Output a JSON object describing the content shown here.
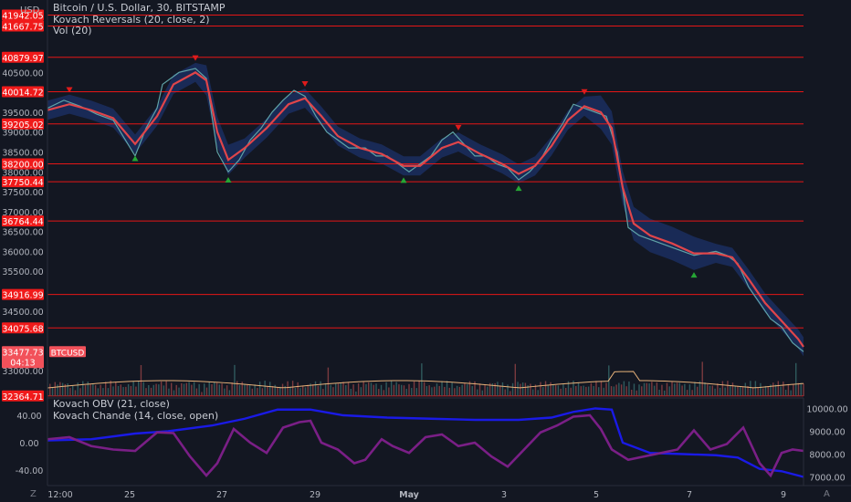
{
  "header": {
    "currency": "USD",
    "title": "Bitcoin / U.S. Dollar, 30, BITSTAMP",
    "indicators": [
      "Kovach Reversals (20, close, 2)",
      "Vol (20)"
    ]
  },
  "lower_pane": {
    "indicators": [
      "Kovach OBV (21, close)",
      "Kovach Chande (14, close, open)"
    ]
  },
  "footer": {
    "left_button": "Z",
    "right_button": "A"
  },
  "colors": {
    "background": "#131722",
    "level_line": "#e51616",
    "level_label": "#f01a1a",
    "price_line": "#5fa3a7",
    "ma_line": "#e0454a",
    "band_fill": "#1f3a82",
    "up_marker": "#26a634",
    "down_marker": "#e01b1b",
    "volume_line": "#e8b27a",
    "obv_line": "#1a1ae6",
    "chande_line": "#7a1f86"
  },
  "chart_data": [
    {
      "type": "line",
      "name": "price",
      "x_labels": [
        "12:00",
        "25",
        "27",
        "29",
        "May",
        "3",
        "5",
        "7",
        "9"
      ],
      "y_ticks": [
        33000,
        33500,
        34000,
        34500,
        35000,
        35500,
        36000,
        36500,
        37000,
        37500,
        38000,
        38500,
        39000,
        39500,
        40000,
        40500,
        41000,
        41500
      ],
      "y_tick_labels": [
        "33000.00",
        "33500.00",
        "34000.00",
        "34500.00",
        "35000.00",
        "35500.00",
        "36000.00",
        "36500.00",
        "37000.00",
        "37500.00",
        "38000.00",
        "38500.00",
        "39000.00",
        "39500.00",
        "40000.00",
        "40500.00",
        "41000.00",
        "41500.00"
      ],
      "ylim": [
        32360,
        42000
      ],
      "levels": [
        {
          "value": 41942.05,
          "label": "41942.05"
        },
        {
          "value": 41667.75,
          "label": "41667.75"
        },
        {
          "value": 40879.97,
          "label": "40879.97"
        },
        {
          "value": 40014.72,
          "label": "40014.72"
        },
        {
          "value": 39205.02,
          "label": "39205.02"
        },
        {
          "value": 38200.0,
          "label": "38200.00"
        },
        {
          "value": 37750.44,
          "label": "37750.44"
        },
        {
          "value": 36764.44,
          "label": "36764.44"
        },
        {
          "value": 34916.99,
          "label": "34916.99"
        },
        {
          "value": 34075.68,
          "label": "34075.68"
        },
        {
          "value": 32364.71,
          "label": "32364.71"
        }
      ],
      "last_price": {
        "value": 33477.73,
        "label": "33477.73",
        "countdown": "04:13",
        "symbol": "BTCUSD"
      },
      "series": [
        {
          "name": "price",
          "points": [
            [
              0.0,
              39600
            ],
            [
              0.03,
              39800
            ],
            [
              0.06,
              39650
            ],
            [
              0.09,
              39450
            ],
            [
              0.12,
              39300
            ],
            [
              0.14,
              38850
            ],
            [
              0.16,
              38400
            ],
            [
              0.18,
              39100
            ],
            [
              0.2,
              39600
            ],
            [
              0.21,
              40200
            ],
            [
              0.24,
              40500
            ],
            [
              0.27,
              40600
            ],
            [
              0.29,
              40350
            ],
            [
              0.31,
              38500
            ],
            [
              0.33,
              38000
            ],
            [
              0.35,
              38300
            ],
            [
              0.37,
              38800
            ],
            [
              0.39,
              39100
            ],
            [
              0.41,
              39500
            ],
            [
              0.43,
              39800
            ],
            [
              0.45,
              40050
            ],
            [
              0.47,
              39900
            ],
            [
              0.49,
              39400
            ],
            [
              0.51,
              39000
            ],
            [
              0.53,
              38800
            ],
            [
              0.55,
              38600
            ],
            [
              0.58,
              38600
            ],
            [
              0.6,
              38400
            ],
            [
              0.62,
              38400
            ],
            [
              0.64,
              38200
            ],
            [
              0.66,
              38000
            ],
            [
              0.68,
              38200
            ],
            [
              0.7,
              38400
            ],
            [
              0.72,
              38800
            ],
            [
              0.74,
              39000
            ],
            [
              0.76,
              38700
            ],
            [
              0.78,
              38400
            ],
            [
              0.8,
              38400
            ],
            [
              0.82,
              38200
            ],
            [
              0.84,
              38100
            ],
            [
              0.86,
              37800
            ],
            [
              0.88,
              38000
            ],
            [
              0.9,
              38300
            ],
            [
              0.92,
              38800
            ],
            [
              0.94,
              39200
            ],
            [
              0.96,
              39700
            ],
            [
              0.98,
              39600
            ],
            [
              1.0,
              39500
            ],
            [
              1.02,
              39400
            ],
            [
              1.04,
              38500
            ],
            [
              1.06,
              36600
            ],
            [
              1.08,
              36400
            ],
            [
              1.1,
              36300
            ],
            [
              1.12,
              36200
            ],
            [
              1.14,
              36100
            ],
            [
              1.16,
              36000
            ],
            [
              1.18,
              35900
            ],
            [
              1.2,
              35950
            ],
            [
              1.22,
              36000
            ],
            [
              1.24,
              35900
            ],
            [
              1.26,
              35700
            ],
            [
              1.28,
              35100
            ],
            [
              1.3,
              34700
            ],
            [
              1.32,
              34300
            ],
            [
              1.34,
              34100
            ],
            [
              1.36,
              33700
            ],
            [
              1.38,
              33478
            ]
          ]
        },
        {
          "name": "moving-average",
          "points": [
            [
              0.0,
              39550
            ],
            [
              0.04,
              39700
            ],
            [
              0.08,
              39550
            ],
            [
              0.12,
              39350
            ],
            [
              0.16,
              38700
            ],
            [
              0.2,
              39400
            ],
            [
              0.23,
              40200
            ],
            [
              0.27,
              40500
            ],
            [
              0.29,
              40300
            ],
            [
              0.31,
              39000
            ],
            [
              0.33,
              38300
            ],
            [
              0.36,
              38600
            ],
            [
              0.4,
              39100
            ],
            [
              0.44,
              39700
            ],
            [
              0.47,
              39850
            ],
            [
              0.5,
              39400
            ],
            [
              0.53,
              38900
            ],
            [
              0.57,
              38600
            ],
            [
              0.61,
              38450
            ],
            [
              0.65,
              38150
            ],
            [
              0.68,
              38150
            ],
            [
              0.72,
              38600
            ],
            [
              0.75,
              38750
            ],
            [
              0.79,
              38450
            ],
            [
              0.83,
              38200
            ],
            [
              0.86,
              37950
            ],
            [
              0.89,
              38150
            ],
            [
              0.92,
              38650
            ],
            [
              0.95,
              39300
            ],
            [
              0.98,
              39650
            ],
            [
              1.01,
              39500
            ],
            [
              1.03,
              39100
            ],
            [
              1.05,
              37600
            ],
            [
              1.07,
              36700
            ],
            [
              1.1,
              36400
            ],
            [
              1.14,
              36200
            ],
            [
              1.18,
              35950
            ],
            [
              1.22,
              35950
            ],
            [
              1.25,
              35850
            ],
            [
              1.28,
              35300
            ],
            [
              1.31,
              34700
            ],
            [
              1.34,
              34250
            ],
            [
              1.37,
              33800
            ],
            [
              1.38,
              33600
            ]
          ]
        }
      ]
    },
    {
      "type": "line",
      "name": "oscillators",
      "left_ticks": [
        40,
        0,
        -40
      ],
      "left_tick_labels": [
        "40.00",
        "0.00",
        "-40.00"
      ],
      "right_ticks": [
        10000,
        9000,
        8000,
        7000
      ],
      "right_tick_labels": [
        "10000.00",
        "9000.00",
        "8000.00",
        "7000.00"
      ],
      "series": [
        {
          "name": "obv",
          "points": [
            [
              0.0,
              8600
            ],
            [
              0.08,
              8650
            ],
            [
              0.16,
              8900
            ],
            [
              0.22,
              9000
            ],
            [
              0.3,
              9250
            ],
            [
              0.36,
              9550
            ],
            [
              0.42,
              9950
            ],
            [
              0.48,
              9950
            ],
            [
              0.54,
              9700
            ],
            [
              0.62,
              9600
            ],
            [
              0.7,
              9550
            ],
            [
              0.78,
              9500
            ],
            [
              0.86,
              9500
            ],
            [
              0.92,
              9600
            ],
            [
              0.96,
              9850
            ],
            [
              1.0,
              10000
            ],
            [
              1.03,
              9950
            ],
            [
              1.05,
              8500
            ],
            [
              1.1,
              8050
            ],
            [
              1.16,
              8000
            ],
            [
              1.22,
              7950
            ],
            [
              1.26,
              7850
            ],
            [
              1.3,
              7350
            ],
            [
              1.34,
              7250
            ],
            [
              1.38,
              7000
            ]
          ]
        },
        {
          "name": "chande",
          "points": [
            [
              0.0,
              5
            ],
            [
              0.04,
              8
            ],
            [
              0.08,
              -5
            ],
            [
              0.12,
              -10
            ],
            [
              0.16,
              -12
            ],
            [
              0.2,
              15
            ],
            [
              0.23,
              14
            ],
            [
              0.26,
              -20
            ],
            [
              0.29,
              -48
            ],
            [
              0.31,
              -30
            ],
            [
              0.34,
              20
            ],
            [
              0.37,
              0
            ],
            [
              0.4,
              -15
            ],
            [
              0.43,
              22
            ],
            [
              0.46,
              30
            ],
            [
              0.48,
              32
            ],
            [
              0.5,
              0
            ],
            [
              0.53,
              -10
            ],
            [
              0.56,
              -30
            ],
            [
              0.58,
              -25
            ],
            [
              0.61,
              5
            ],
            [
              0.63,
              -5
            ],
            [
              0.66,
              -15
            ],
            [
              0.69,
              8
            ],
            [
              0.72,
              12
            ],
            [
              0.75,
              -5
            ],
            [
              0.78,
              0
            ],
            [
              0.81,
              -20
            ],
            [
              0.84,
              -35
            ],
            [
              0.87,
              -10
            ],
            [
              0.9,
              15
            ],
            [
              0.93,
              25
            ],
            [
              0.96,
              38
            ],
            [
              0.99,
              40
            ],
            [
              1.01,
              20
            ],
            [
              1.03,
              -10
            ],
            [
              1.06,
              -25
            ],
            [
              1.09,
              -20
            ],
            [
              1.12,
              -15
            ],
            [
              1.15,
              -10
            ],
            [
              1.18,
              18
            ],
            [
              1.21,
              -10
            ],
            [
              1.24,
              -2
            ],
            [
              1.27,
              22
            ],
            [
              1.3,
              -30
            ],
            [
              1.32,
              -48
            ],
            [
              1.34,
              -15
            ],
            [
              1.36,
              -10
            ],
            [
              1.38,
              -12
            ]
          ]
        }
      ]
    }
  ]
}
